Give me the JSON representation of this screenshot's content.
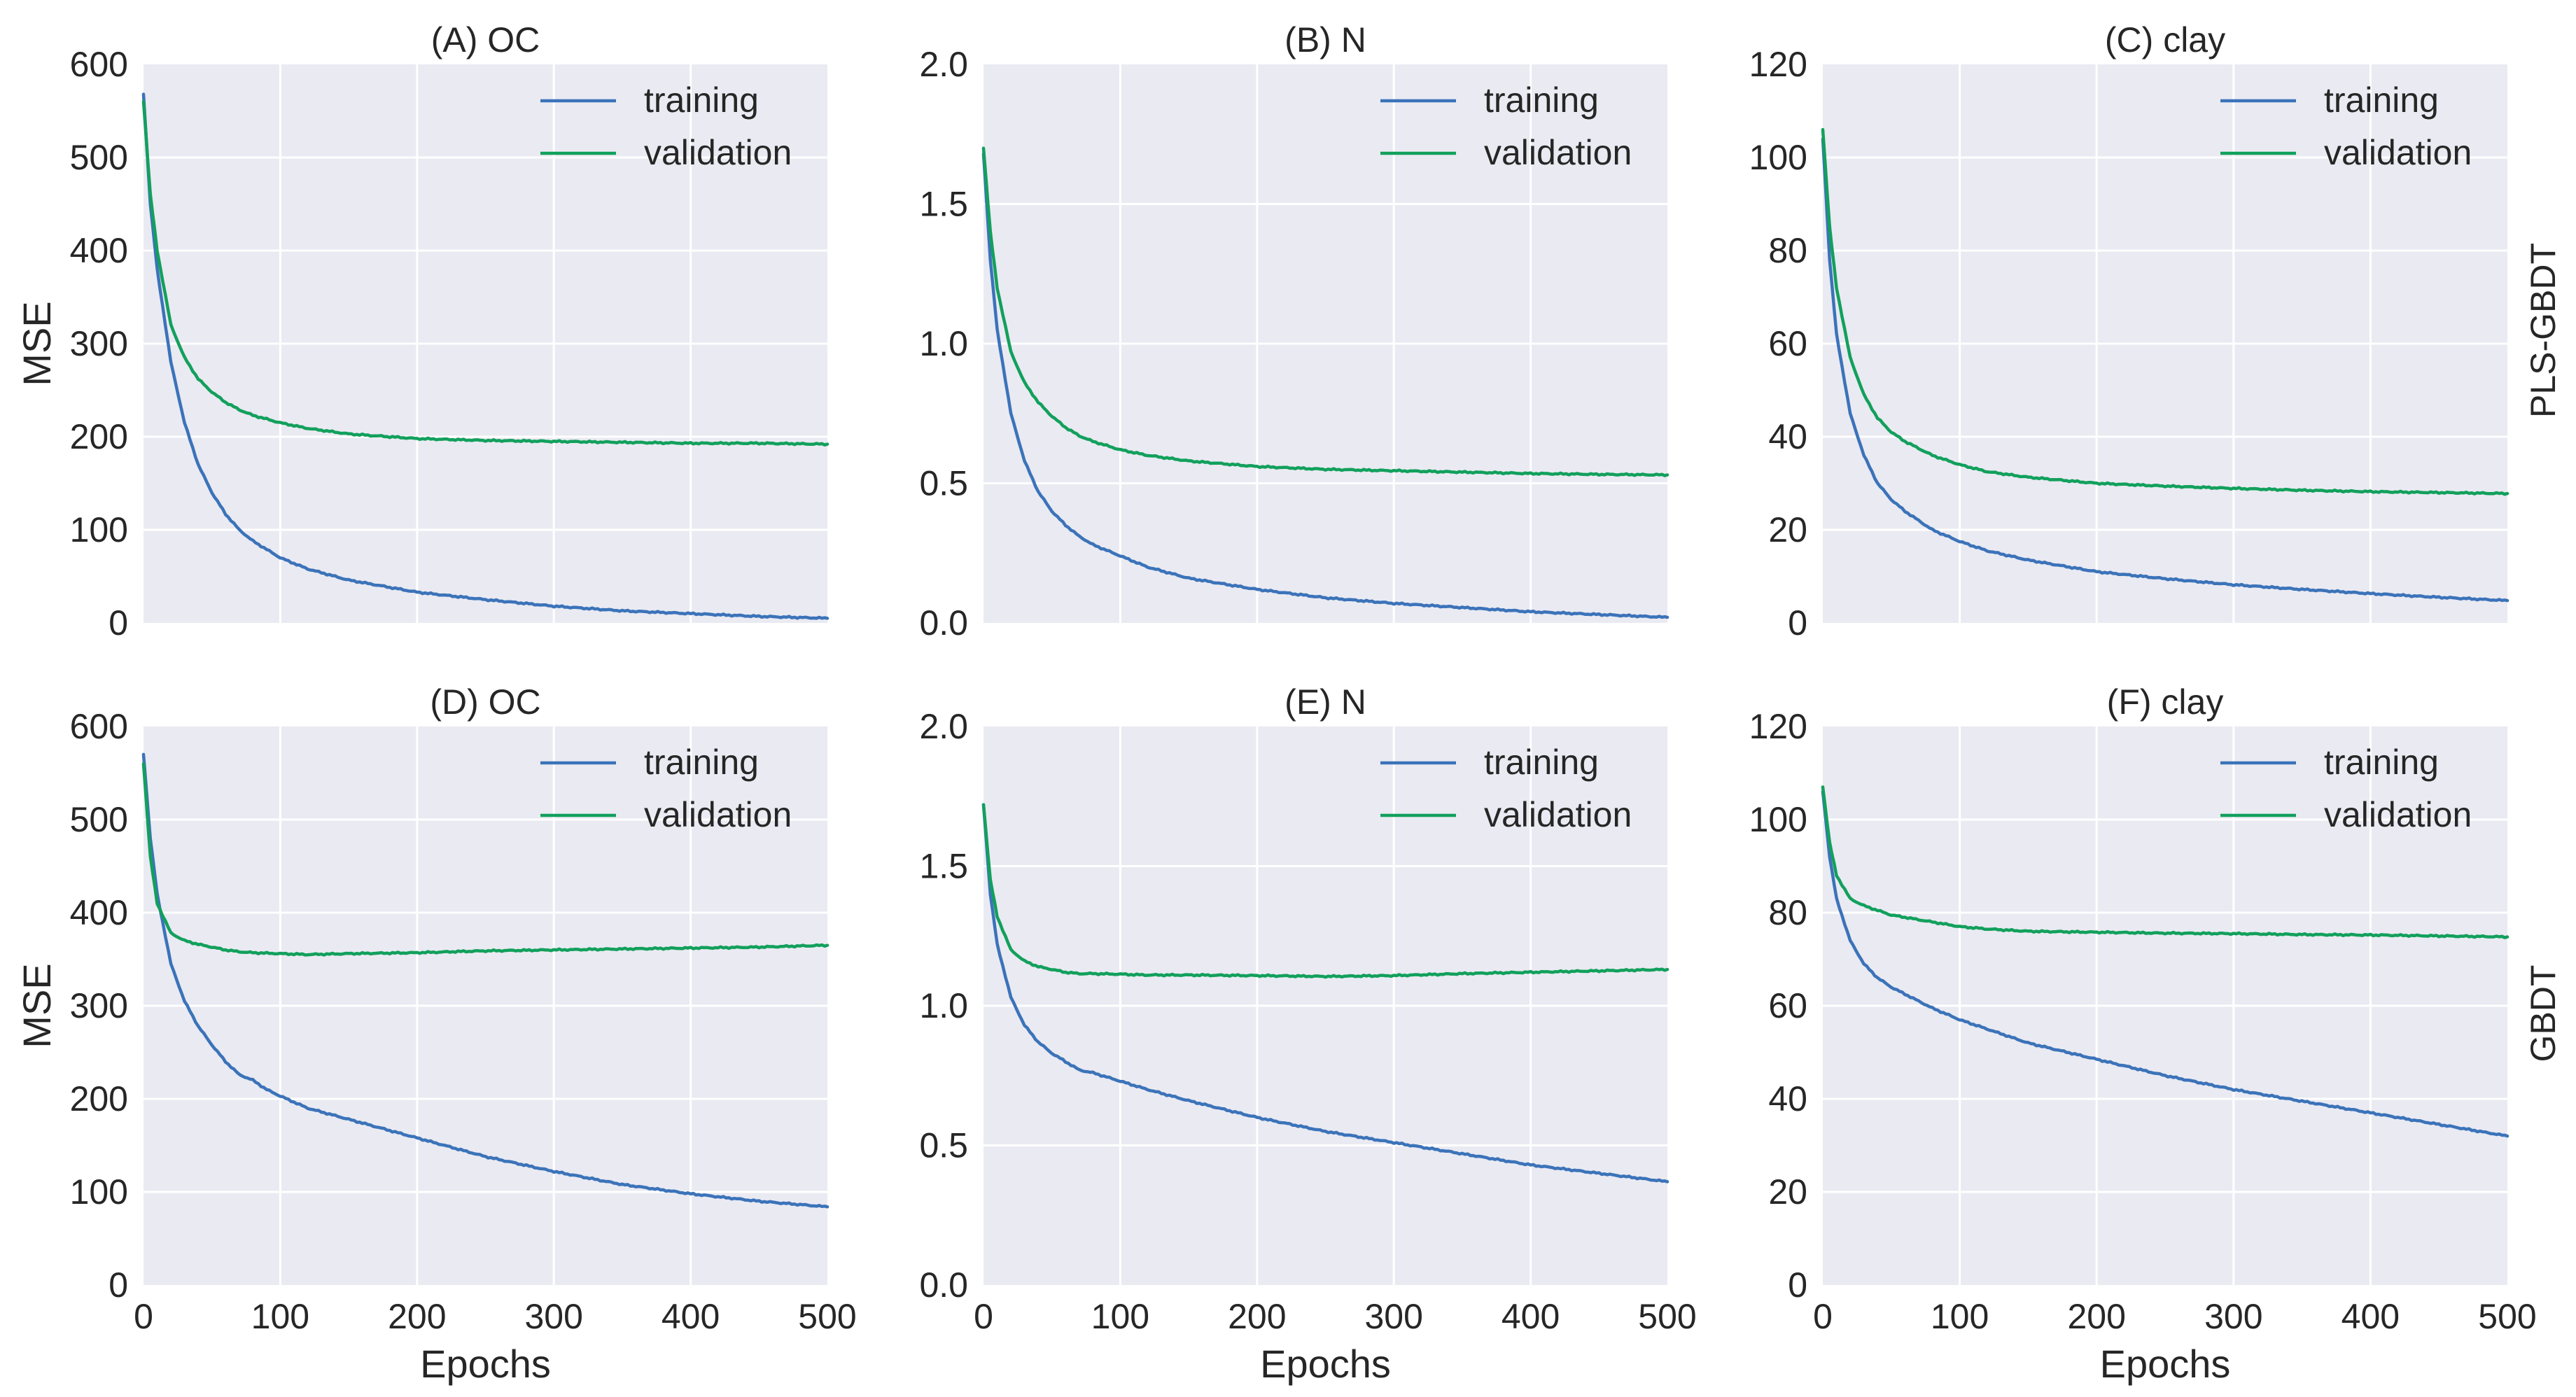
{
  "figure": {
    "row_labels": [
      "PLS-GBDT",
      "GBDT"
    ],
    "colors": {
      "training": "#3b73b9",
      "validation": "#12a05c",
      "panel_background": "#eaeaf2",
      "grid": "#ffffff"
    }
  },
  "chart_data": [
    {
      "type": "line",
      "title": "(A) OC",
      "xlabel": "",
      "ylabel": "MSE",
      "xlim": [
        0,
        500
      ],
      "ylim": [
        0,
        600
      ],
      "xticks": [
        0,
        100,
        200,
        300,
        400,
        500
      ],
      "xtick_labels": [
        "",
        "",
        "",
        "",
        "",
        ""
      ],
      "yticks": [
        0,
        100,
        200,
        300,
        400,
        500,
        600
      ],
      "ytick_labels": [
        "0",
        "100",
        "200",
        "300",
        "400",
        "500",
        "600"
      ],
      "legend": [
        "training",
        "validation"
      ],
      "legend_position": "top-right",
      "grid": true,
      "series": [
        {
          "name": "training",
          "x": [
            0,
            5,
            10,
            20,
            30,
            40,
            50,
            60,
            70,
            80,
            100,
            120,
            150,
            200,
            250,
            300,
            350,
            400,
            450,
            500
          ],
          "y": [
            568,
            450,
            380,
            280,
            215,
            170,
            140,
            117,
            100,
            88,
            70,
            58,
            46,
            33,
            25,
            18,
            13,
            10,
            7,
            5
          ]
        },
        {
          "name": "validation",
          "x": [
            0,
            5,
            10,
            20,
            30,
            40,
            50,
            60,
            70,
            80,
            100,
            120,
            150,
            200,
            250,
            300,
            350,
            400,
            450,
            500
          ],
          "y": [
            560,
            460,
            400,
            320,
            285,
            262,
            248,
            237,
            229,
            223,
            215,
            209,
            203,
            198,
            196,
            195,
            194,
            193,
            193,
            192
          ]
        }
      ]
    },
    {
      "type": "line",
      "title": "(B) N",
      "xlabel": "",
      "ylabel": "",
      "xlim": [
        0,
        500
      ],
      "ylim": [
        0,
        2.0
      ],
      "xticks": [
        0,
        100,
        200,
        300,
        400,
        500
      ],
      "xtick_labels": [
        "",
        "",
        "",
        "",
        "",
        ""
      ],
      "yticks": [
        0,
        0.5,
        1.0,
        1.5,
        2.0
      ],
      "ytick_labels": [
        "0.0",
        "0.5",
        "1.0",
        "1.5",
        "2.0"
      ],
      "legend": [
        "training",
        "validation"
      ],
      "legend_position": "top-right",
      "grid": true,
      "series": [
        {
          "name": "training",
          "x": [
            0,
            5,
            10,
            20,
            30,
            40,
            50,
            60,
            70,
            80,
            100,
            120,
            150,
            200,
            250,
            300,
            350,
            400,
            450,
            500
          ],
          "y": [
            1.68,
            1.3,
            1.05,
            0.75,
            0.58,
            0.47,
            0.4,
            0.35,
            0.31,
            0.28,
            0.24,
            0.2,
            0.16,
            0.12,
            0.09,
            0.07,
            0.055,
            0.04,
            0.03,
            0.02
          ]
        },
        {
          "name": "validation",
          "x": [
            0,
            5,
            10,
            20,
            30,
            40,
            50,
            60,
            70,
            80,
            100,
            120,
            150,
            200,
            250,
            300,
            350,
            400,
            450,
            500
          ],
          "y": [
            1.7,
            1.4,
            1.2,
            0.97,
            0.86,
            0.79,
            0.74,
            0.7,
            0.67,
            0.65,
            0.62,
            0.6,
            0.58,
            0.56,
            0.55,
            0.545,
            0.54,
            0.535,
            0.532,
            0.53
          ]
        }
      ]
    },
    {
      "type": "line",
      "title": "(C) clay",
      "xlabel": "",
      "ylabel": "",
      "xlim": [
        0,
        500
      ],
      "ylim": [
        0,
        120
      ],
      "xticks": [
        0,
        100,
        200,
        300,
        400,
        500
      ],
      "xtick_labels": [
        "",
        "",
        "",
        "",
        "",
        ""
      ],
      "yticks": [
        0,
        20,
        40,
        60,
        80,
        100,
        120
      ],
      "ytick_labels": [
        "0",
        "20",
        "40",
        "60",
        "80",
        "100",
        "120"
      ],
      "legend": [
        "training",
        "validation"
      ],
      "legend_position": "top-right",
      "grid": true,
      "series": [
        {
          "name": "training",
          "x": [
            0,
            5,
            10,
            20,
            30,
            40,
            50,
            60,
            70,
            80,
            100,
            120,
            150,
            200,
            250,
            300,
            350,
            400,
            450,
            500
          ],
          "y": [
            104,
            78,
            62,
            45,
            36,
            30,
            26.5,
            24,
            22,
            20,
            17.5,
            15.5,
            13.5,
            11,
            9.5,
            8.2,
            7.2,
            6.3,
            5.5,
            4.8
          ]
        },
        {
          "name": "validation",
          "x": [
            0,
            5,
            10,
            20,
            30,
            40,
            50,
            60,
            70,
            80,
            100,
            120,
            150,
            200,
            250,
            300,
            350,
            400,
            450,
            500
          ],
          "y": [
            106,
            85,
            72,
            57,
            49,
            44,
            41,
            39,
            37.5,
            36,
            34,
            32.5,
            31.3,
            30,
            29.4,
            28.9,
            28.5,
            28.2,
            28,
            27.8
          ]
        }
      ]
    },
    {
      "type": "line",
      "title": "(D) OC",
      "xlabel": "Epochs",
      "ylabel": "MSE",
      "xlim": [
        0,
        500
      ],
      "ylim": [
        0,
        600
      ],
      "xticks": [
        0,
        100,
        200,
        300,
        400,
        500
      ],
      "xtick_labels": [
        "0",
        "100",
        "200",
        "300",
        "400",
        "500"
      ],
      "yticks": [
        0,
        100,
        200,
        300,
        400,
        500,
        600
      ],
      "ytick_labels": [
        "0",
        "100",
        "200",
        "300",
        "400",
        "500",
        "600"
      ],
      "legend": [
        "training",
        "validation"
      ],
      "legend_position": "top-right",
      "grid": true,
      "series": [
        {
          "name": "training",
          "x": [
            0,
            5,
            10,
            20,
            30,
            40,
            50,
            60,
            70,
            80,
            90,
            100,
            120,
            150,
            200,
            250,
            300,
            350,
            400,
            450,
            500
          ],
          "y": [
            570,
            480,
            420,
            345,
            305,
            278,
            258,
            240,
            226,
            220,
            210,
            203,
            190,
            178,
            158,
            138,
            122,
            108,
            98,
            90,
            84
          ]
        },
        {
          "name": "validation",
          "x": [
            0,
            5,
            10,
            20,
            30,
            40,
            50,
            60,
            70,
            80,
            100,
            120,
            150,
            200,
            250,
            300,
            350,
            400,
            450,
            500
          ],
          "y": [
            560,
            460,
            410,
            378,
            370,
            366,
            363,
            360,
            358,
            357,
            356,
            355,
            356,
            357,
            359,
            360,
            361,
            362,
            363,
            365
          ]
        }
      ]
    },
    {
      "type": "line",
      "title": "(E) N",
      "xlabel": "Epochs",
      "ylabel": "",
      "xlim": [
        0,
        500
      ],
      "ylim": [
        0,
        2.0
      ],
      "xticks": [
        0,
        100,
        200,
        300,
        400,
        500
      ],
      "xtick_labels": [
        "0",
        "100",
        "200",
        "300",
        "400",
        "500"
      ],
      "yticks": [
        0,
        0.5,
        1.0,
        1.5,
        2.0
      ],
      "ytick_labels": [
        "0.0",
        "0.5",
        "1.0",
        "1.5",
        "2.0"
      ],
      "legend": [
        "training",
        "validation"
      ],
      "legend_position": "top-right",
      "grid": true,
      "series": [
        {
          "name": "training",
          "x": [
            0,
            5,
            10,
            20,
            30,
            40,
            50,
            60,
            70,
            80,
            100,
            120,
            150,
            200,
            250,
            300,
            350,
            400,
            450,
            500
          ],
          "y": [
            1.72,
            1.4,
            1.22,
            1.03,
            0.93,
            0.87,
            0.83,
            0.8,
            0.77,
            0.76,
            0.73,
            0.7,
            0.66,
            0.6,
            0.55,
            0.51,
            0.47,
            0.43,
            0.4,
            0.37
          ]
        },
        {
          "name": "validation",
          "x": [
            0,
            5,
            10,
            20,
            30,
            40,
            50,
            60,
            70,
            80,
            100,
            120,
            150,
            200,
            250,
            300,
            350,
            400,
            450,
            500
          ],
          "y": [
            1.72,
            1.45,
            1.32,
            1.2,
            1.16,
            1.14,
            1.13,
            1.12,
            1.115,
            1.115,
            1.113,
            1.11,
            1.11,
            1.108,
            1.105,
            1.108,
            1.115,
            1.12,
            1.125,
            1.13
          ]
        }
      ]
    },
    {
      "type": "line",
      "title": "(F) clay",
      "xlabel": "Epochs",
      "ylabel": "",
      "xlim": [
        0,
        500
      ],
      "ylim": [
        0,
        120
      ],
      "xticks": [
        0,
        100,
        200,
        300,
        400,
        500
      ],
      "xtick_labels": [
        "0",
        "100",
        "200",
        "300",
        "400",
        "500"
      ],
      "yticks": [
        0,
        20,
        40,
        60,
        80,
        100,
        120
      ],
      "ytick_labels": [
        "0",
        "20",
        "40",
        "60",
        "80",
        "100",
        "120"
      ],
      "legend": [
        "training",
        "validation"
      ],
      "legend_position": "top-right",
      "grid": true,
      "series": [
        {
          "name": "training",
          "x": [
            0,
            5,
            10,
            20,
            30,
            40,
            50,
            60,
            70,
            80,
            100,
            120,
            150,
            200,
            250,
            300,
            350,
            400,
            450,
            500
          ],
          "y": [
            106,
            92,
            83,
            74,
            69,
            66,
            64,
            62.5,
            61,
            59.5,
            57,
            55,
            52,
            48.5,
            45,
            42,
            39.5,
            37,
            34.5,
            32
          ]
        },
        {
          "name": "validation",
          "x": [
            0,
            5,
            10,
            20,
            30,
            40,
            50,
            60,
            70,
            80,
            100,
            120,
            150,
            200,
            250,
            300,
            350,
            400,
            450,
            500
          ],
          "y": [
            107,
            95,
            88,
            83,
            81.5,
            80.5,
            79.5,
            79,
            78.5,
            78,
            77,
            76.5,
            76,
            75.8,
            75.6,
            75.5,
            75.3,
            75.2,
            75,
            74.8
          ]
        }
      ]
    }
  ]
}
